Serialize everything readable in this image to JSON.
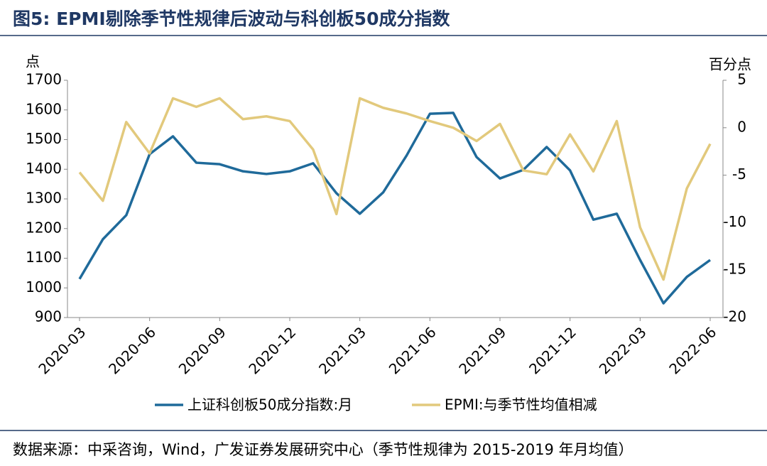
{
  "chart_data": {
    "type": "line",
    "title": "图5:  EPMI剔除季节性规律后波动与科创板50成分指数",
    "y_label": "点",
    "y2_label": "百分点",
    "categories": [
      "2020-03",
      null,
      null,
      "2020-06",
      null,
      null,
      "2020-09",
      null,
      null,
      "2020-12",
      null,
      null,
      "2021-03",
      null,
      null,
      "2021-06",
      null,
      null,
      "2021-09",
      null,
      null,
      "2021-12",
      null,
      null,
      "2022-03",
      null,
      null,
      "2022-06"
    ],
    "series": [
      {
        "name": "上证科创板50成分指数:月",
        "color": "#1f6a9a",
        "values": [
          1030,
          1164,
          1245,
          1451,
          1511,
          1422,
          1417,
          1393,
          1384,
          1393,
          1420,
          1319,
          1250,
          1322,
          1446,
          1587,
          1590,
          1441,
          1369,
          1398,
          1475,
          1396,
          1230,
          1250,
          1094,
          948,
          1037,
          1094
        ]
      },
      {
        "name": "EPMI:与季节性均值相减",
        "color": "#e2c97c",
        "axis": "y2",
        "values": [
          -4.7,
          -7.7,
          0.6,
          -2.7,
          3.1,
          2.2,
          3.1,
          0.9,
          1.2,
          0.7,
          -2.3,
          -9.1,
          3.1,
          2.1,
          1.5,
          0.7,
          0.0,
          -1.4,
          0.4,
          -4.5,
          -4.9,
          -0.7,
          -4.6,
          0.7,
          -10.5,
          -16.0,
          -6.4,
          -1.7
        ]
      }
    ],
    "ylim": [
      900,
      1700
    ],
    "yticks": [
      900,
      1000,
      1100,
      1200,
      1300,
      1400,
      1500,
      1600,
      1700
    ],
    "y2lim": [
      -20,
      5
    ],
    "y2ticks": [
      -20,
      -15,
      -10,
      -5,
      0,
      5
    ],
    "grid": false,
    "source": "数据来源：中采咨询，Wind，广发证券发展研究中心（季节性规律为 2015-2019 年月均值）"
  }
}
